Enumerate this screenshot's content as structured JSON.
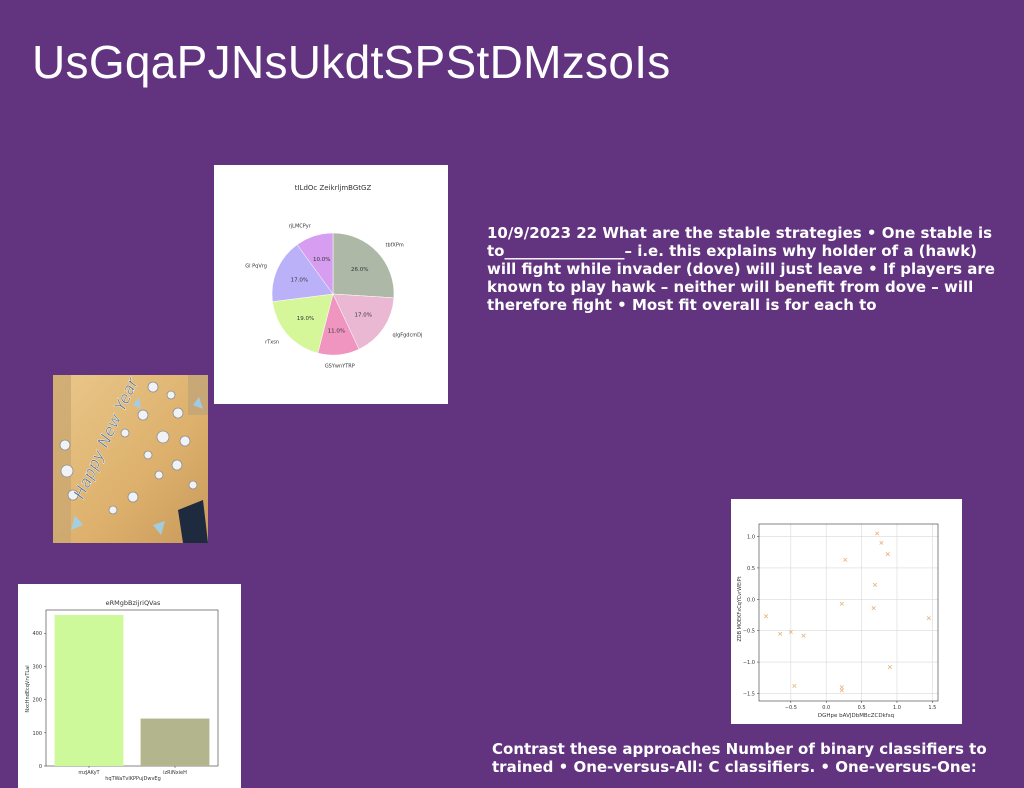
{
  "slide": {
    "title": "UsGqaPJNsUkdtSPStDMzsoIs",
    "body_text_1": "10/9/2023 22 What are the stable strategies • One stable is to________________– i.e. this explains why holder of a (hawk) will fight while invader (dove) will just leave • If players are known to play hawk – neither will benefit from dove – will therefore fight • Most fit overall is for each to",
    "body_text_2": "Contrast these approaches Number of binary classifiers to trained • One-versus-All: C classifiers. • One-versus-One:",
    "photo_icon": "happy-new-year-photo",
    "photo_caption": "Happy New Year"
  },
  "chart_data": [
    {
      "type": "pie",
      "title": "tILdOc ZeikrljmBGtGZ",
      "labels": [
        "tbfXPm",
        "qlgFgdcmDj",
        "GSYwnYTRP",
        "rTxsn",
        "Gl PqVrg",
        "rjLMCPyr"
      ],
      "values": [
        26.0,
        17.0,
        11.0,
        19.0,
        17.0,
        10.0
      ],
      "value_labels": [
        "26.0%",
        "17.0%",
        "11.0%",
        "19.0%",
        "17.0%",
        "10.0%"
      ],
      "colors": [
        "#adb9a6",
        "#eab8d2",
        "#ef95c0",
        "#d5f79a",
        "#bbb1f8",
        "#d69df1"
      ]
    },
    {
      "type": "bar",
      "title": "eRMgbBzijriQVas",
      "xlabel": "hqTWaTvlKPPujDwvEg",
      "ylabel": "NxcHndEcqVrvTLal",
      "categories": [
        "mzJAKyT",
        "izRiNxieH"
      ],
      "values": [
        455,
        143
      ],
      "colors": [
        "#cdf99a",
        "#b3b68c"
      ],
      "ylim": [
        0,
        470
      ],
      "yticks": [
        0,
        100,
        200,
        300,
        400
      ]
    },
    {
      "type": "scatter",
      "xlabel": "DGHpe bAVJDbMBcZCDkfsq",
      "ylabel": "ZDB MOEKFxCqYCvrWEiPt",
      "marker": "x",
      "color": "#e8b382",
      "grid": true,
      "xlim": [
        -0.95,
        1.58
      ],
      "ylim": [
        -1.62,
        1.2
      ],
      "xticks": [
        -0.5,
        0.0,
        0.5,
        1.0,
        1.5
      ],
      "yticks": [
        -1.5,
        -1.0,
        -0.5,
        0.0,
        0.5,
        1.0
      ],
      "xticklabels": [
        "−0.5",
        "0.0",
        "0.5",
        "1.0",
        "1.5"
      ],
      "yticklabels": [
        "−1.5",
        "−1.0",
        "−0.5",
        "0.0",
        "0.5",
        "1.0"
      ],
      "points": [
        {
          "x": -0.85,
          "y": -0.27
        },
        {
          "x": -0.65,
          "y": -0.55
        },
        {
          "x": -0.5,
          "y": -0.52
        },
        {
          "x": -0.45,
          "y": -1.38
        },
        {
          "x": -0.32,
          "y": -0.58
        },
        {
          "x": 0.22,
          "y": -0.07
        },
        {
          "x": 0.22,
          "y": -1.4
        },
        {
          "x": 0.22,
          "y": -1.45
        },
        {
          "x": 0.27,
          "y": 0.63
        },
        {
          "x": 0.67,
          "y": -0.14
        },
        {
          "x": 0.69,
          "y": 0.23
        },
        {
          "x": 0.72,
          "y": 1.05
        },
        {
          "x": 0.78,
          "y": 0.9
        },
        {
          "x": 0.87,
          "y": 0.72
        },
        {
          "x": 0.9,
          "y": -1.08
        },
        {
          "x": 1.45,
          "y": -0.3
        }
      ]
    }
  ]
}
